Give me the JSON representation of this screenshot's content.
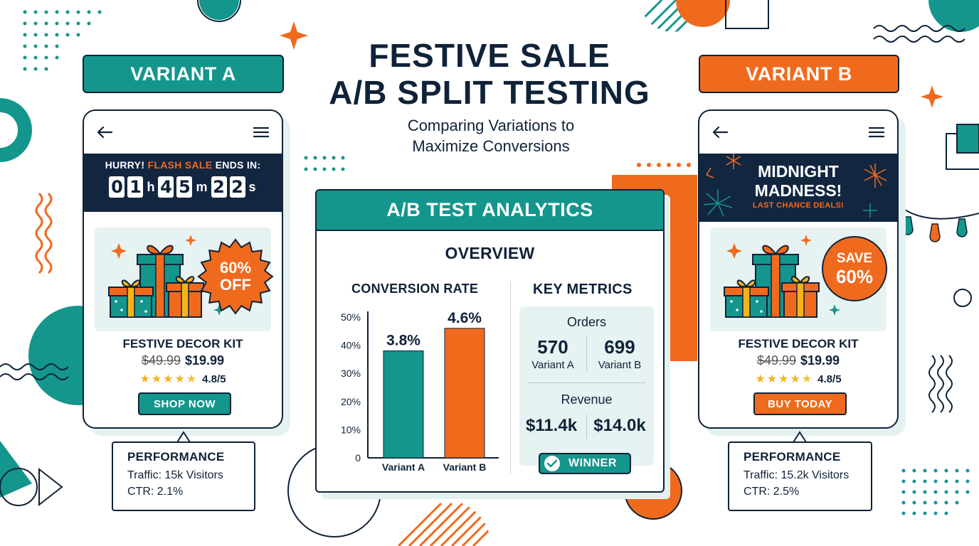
{
  "header": {
    "title_line1": "FESTIVE SALE",
    "title_line2": "A/B SPLIT TESTING",
    "subtitle_line1": "Comparing Variations to",
    "subtitle_line2": "Maximize Conversions"
  },
  "colors": {
    "teal": "#14968c",
    "orange": "#f06a1e",
    "navy": "#0f2238",
    "light_teal": "#e6f3f2",
    "gold": "#f4b31c"
  },
  "variant_a": {
    "tag": "VARIANT A",
    "icons": [
      "back-arrow-icon",
      "hamburger-menu-icon",
      "gift-boxes-icon"
    ],
    "banner_prefix": "HURRY! ",
    "banner_flash": "FLASH SALE",
    "banner_suffix": " ENDS IN:",
    "countdown": {
      "h1": "0",
      "h2": "1",
      "h_unit": "h",
      "m1": "4",
      "m2": "5",
      "m_unit": "m",
      "s1": "2",
      "s2": "2",
      "s_unit": "s"
    },
    "badge_line1": "60%",
    "badge_line2": "OFF",
    "product_name": "FESTIVE DECOR KIT",
    "old_price": "$49.99",
    "new_price": "$19.99",
    "rating_stars": 4.5,
    "rating": "4.8/5",
    "cta": "SHOP NOW",
    "performance": {
      "title": "PERFORMANCE",
      "traffic": "Traffic: 15k Visitors",
      "ctr": "CTR: 2.1%"
    }
  },
  "variant_b": {
    "tag": "VARIANT B",
    "icons": [
      "back-arrow-icon",
      "hamburger-menu-icon",
      "fireworks-icon",
      "gift-boxes-icon"
    ],
    "banner_line1": "MIDNIGHT",
    "banner_line2": "MADNESS!",
    "banner_sub": "LAST CHANCE DEALS!",
    "badge_line1": "SAVE",
    "badge_line2": "60%",
    "product_name": "FESTIVE DECOR KIT",
    "old_price": "$49.99",
    "new_price": "$19.99",
    "rating_stars": 4.5,
    "rating": "4.8/5",
    "cta": "BUY TODAY",
    "performance": {
      "title": "PERFORMANCE",
      "traffic": "Traffic: 15.2k Visitors",
      "ctr": "CTR: 2.5%"
    }
  },
  "analytics": {
    "title": "A/B TEST ANALYTICS",
    "overview": "OVERVIEW",
    "conversion_title": "CONVERSION RATE",
    "metrics_title": "KEY METRICS",
    "orders_label": "Orders",
    "orders_a": "570",
    "orders_b": "699",
    "label_a": "Variant A",
    "label_b": "Variant B",
    "revenue_label": "Revenue",
    "revenue_a": "$11.4k",
    "revenue_b": "$14.0k",
    "winner": "WINNER"
  },
  "chart_data": {
    "type": "bar",
    "categories": [
      "Variant A",
      "Variant B"
    ],
    "values": [
      3.8,
      4.6
    ],
    "value_labels": [
      "3.8%",
      "4.6%"
    ],
    "bar_colors": [
      "#14968c",
      "#f06a1e"
    ],
    "yticks": [
      "0",
      "10%",
      "20%",
      "30%",
      "40%",
      "50%"
    ],
    "title": "CONVERSION RATE",
    "ylim": [
      0,
      5
    ]
  }
}
